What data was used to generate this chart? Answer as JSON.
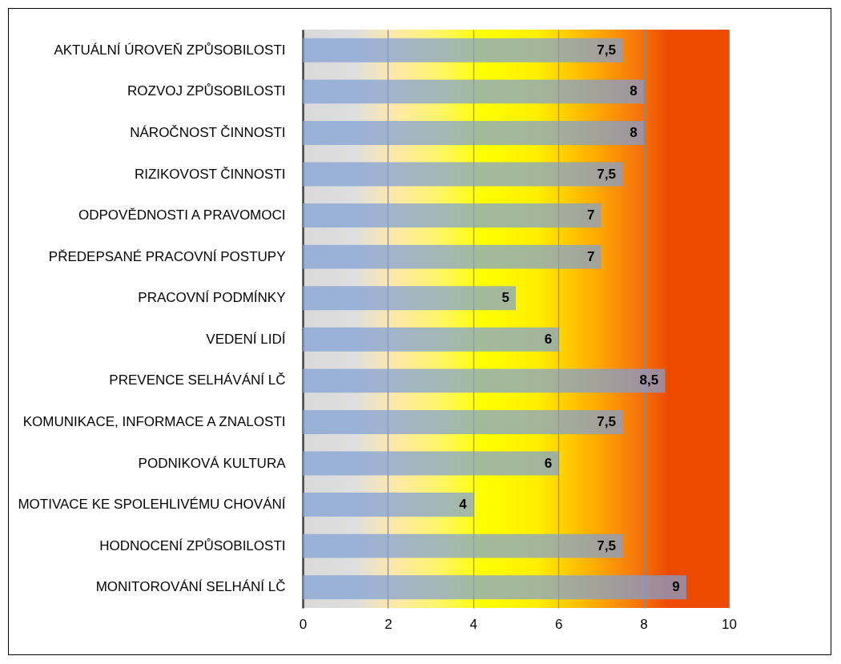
{
  "chart_data": {
    "type": "bar",
    "orientation": "horizontal",
    "categories": [
      "AKTUÁLNÍ ÚROVEŇ ZPŮSOBILOSTI",
      "ROZVOJ ZPŮSOBILOSTI",
      "NÁROČNOST ČINNOSTI",
      "RIZIKOVOST ČINNOSTI",
      "ODPOVĚDNOSTI A PRAVOMOCI",
      "PŘEDEPSANÉ PRACOVNÍ POSTUPY",
      "PRACOVNÍ PODMÍNKY",
      "VEDENÍ LIDÍ",
      "PREVENCE SELHÁVÁNÍ LČ",
      "KOMUNIKACE, INFORMACE A ZNALOSTI",
      "PODNIKOVÁ KULTURA",
      "MOTIVACE KE SPOLEHLIVÉMU CHOVÁNÍ",
      "HODNOCENÍ ZPŮSOBILOSTI",
      "MONITOROVÁNÍ SELHÁNÍ LČ"
    ],
    "values": [
      7.5,
      8,
      8,
      7.5,
      7,
      7,
      5,
      6,
      8.5,
      7.5,
      6,
      4,
      7.5,
      9
    ],
    "value_labels": [
      "7,5",
      "8",
      "8",
      "7,5",
      "7",
      "7",
      "5",
      "6",
      "8,5",
      "7,5",
      "6",
      "4",
      "7,5",
      "9"
    ],
    "color": "#7f9fd6",
    "xlim": [
      0,
      10
    ],
    "xticks": [
      0,
      2,
      4,
      6,
      8,
      10
    ],
    "grid": "x"
  }
}
